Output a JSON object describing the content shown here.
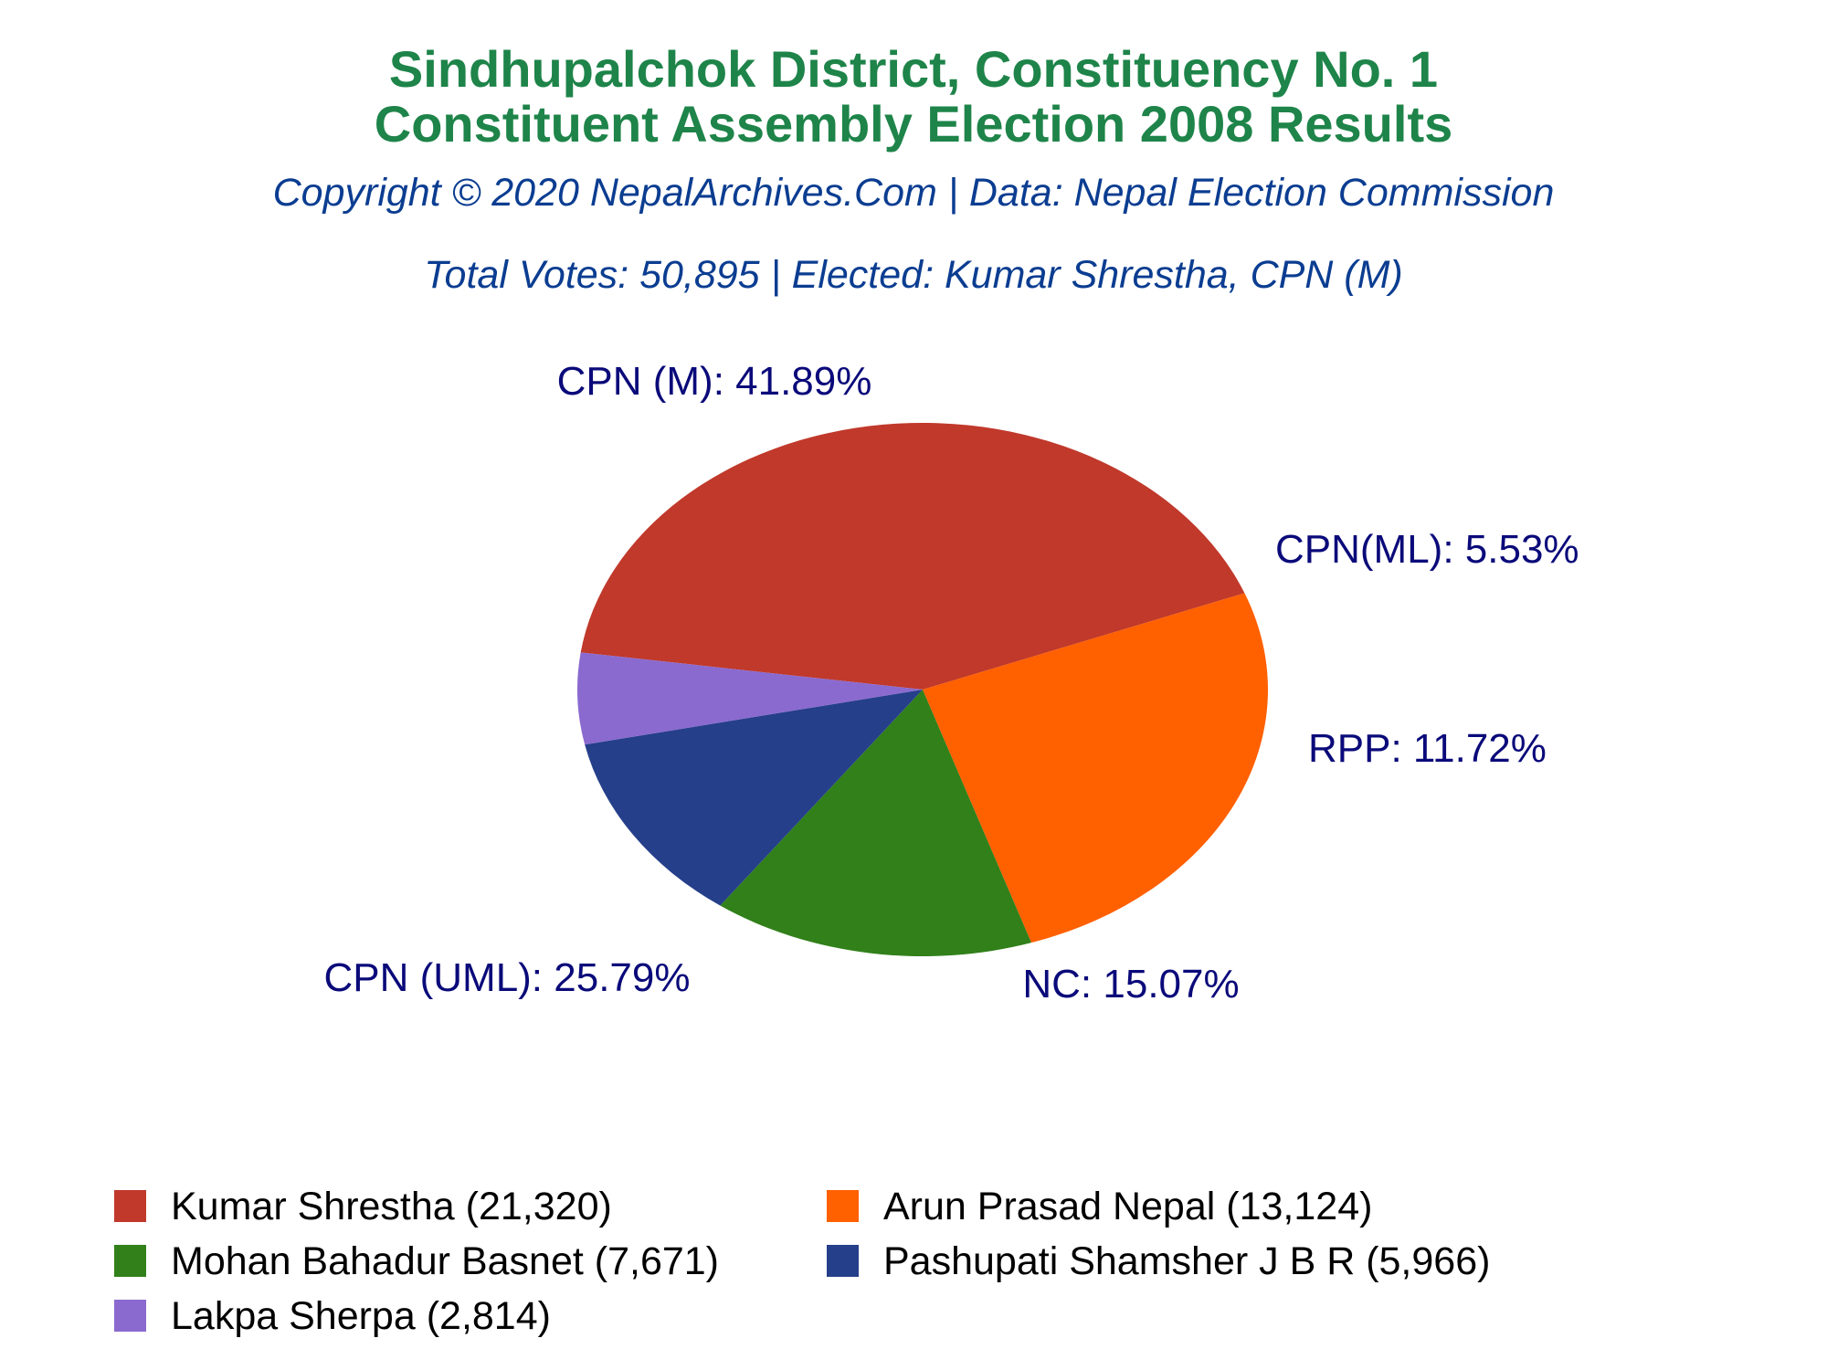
{
  "chart_data": {
    "type": "pie",
    "title_lines": [
      "Sindhupalchok District, Constituency No. 1",
      "Constituent Assembly Election 2008 Results"
    ],
    "copyright": "Copyright © 2020 NepalArchives.Com | Data: Nepal Election Commission",
    "summary": "Total Votes: 50,895 | Elected: Kumar Shrestha, CPN (M)",
    "slices": [
      {
        "party": "CPN (M)",
        "percent": 41.89,
        "label": "CPN (M): 41.89%",
        "color": "#c0392b",
        "side_color": "#a00000"
      },
      {
        "party": "CPN (UML)",
        "percent": 25.79,
        "label": "CPN (UML): 25.79%",
        "color": "#ff6000",
        "side_color": "#c04000"
      },
      {
        "party": "NC",
        "percent": 15.07,
        "label": "NC: 15.07%",
        "color": "#31801a",
        "side_color": "#0f3a06"
      },
      {
        "party": "RPP",
        "percent": 11.72,
        "label": "RPP: 11.72%",
        "color": "#253f8a",
        "side_color": "#0b1550"
      },
      {
        "party": "CPN(ML)",
        "percent": 5.53,
        "label": "CPN(ML): 5.53%",
        "color": "#8a6acf",
        "side_color": "#5a3e9a"
      }
    ],
    "legend": [
      {
        "text": "Kumar Shrestha (21,320)",
        "color": "#c0392b"
      },
      {
        "text": "Arun Prasad Nepal (13,124)",
        "color": "#ff6000"
      },
      {
        "text": "Mohan Bahadur Basnet (7,671)",
        "color": "#31801a"
      },
      {
        "text": "Pashupati Shamsher J B R (5,966)",
        "color": "#253f8a"
      },
      {
        "text": "Lakpa Sherpa (2,814)",
        "color": "#8a6acf"
      }
    ]
  }
}
